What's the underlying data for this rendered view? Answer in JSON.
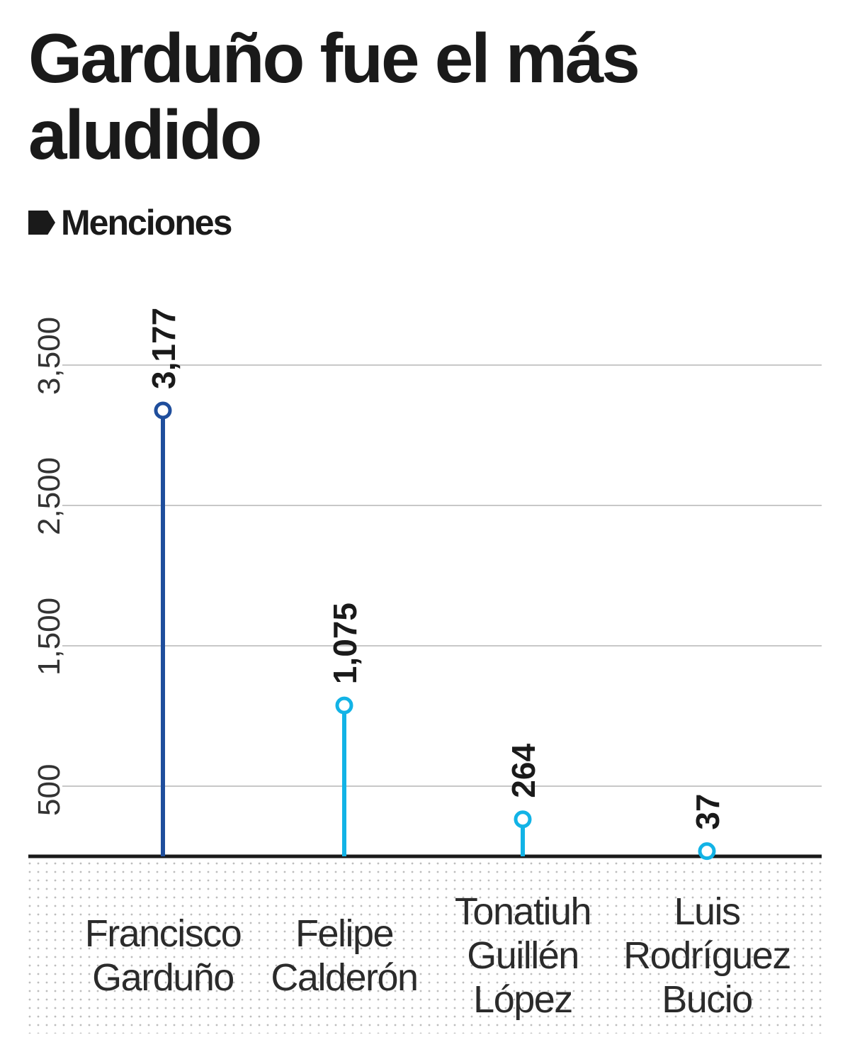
{
  "title": "Garduño fue el más aludido",
  "subtitle": "Menciones",
  "colors": {
    "highlight": "#1f4e9c",
    "accent": "#12b3e6",
    "grid": "#c8c8c8",
    "axis": "#1a1a1a",
    "dots": "#bdbdbd"
  },
  "chart_data": {
    "type": "lollipop",
    "title": "",
    "xlabel": "",
    "ylabel": "",
    "categories": [
      [
        "Francisco",
        "Garduño"
      ],
      [
        "Felipe",
        "Calderón"
      ],
      [
        "Tonatiuh",
        "Guillén",
        "López"
      ],
      [
        "Luis",
        "Rodríguez",
        "Bucio"
      ]
    ],
    "values": [
      3177,
      1075,
      264,
      37
    ],
    "value_labels": [
      "3,177",
      "1,075",
      "264",
      "37"
    ],
    "yticks": [
      500,
      1500,
      2500,
      3500
    ],
    "ytick_labels": [
      "500",
      "1,500",
      "2,500",
      "3,500"
    ],
    "ylim": [
      0,
      3500
    ],
    "grid": true,
    "legend": "none"
  }
}
